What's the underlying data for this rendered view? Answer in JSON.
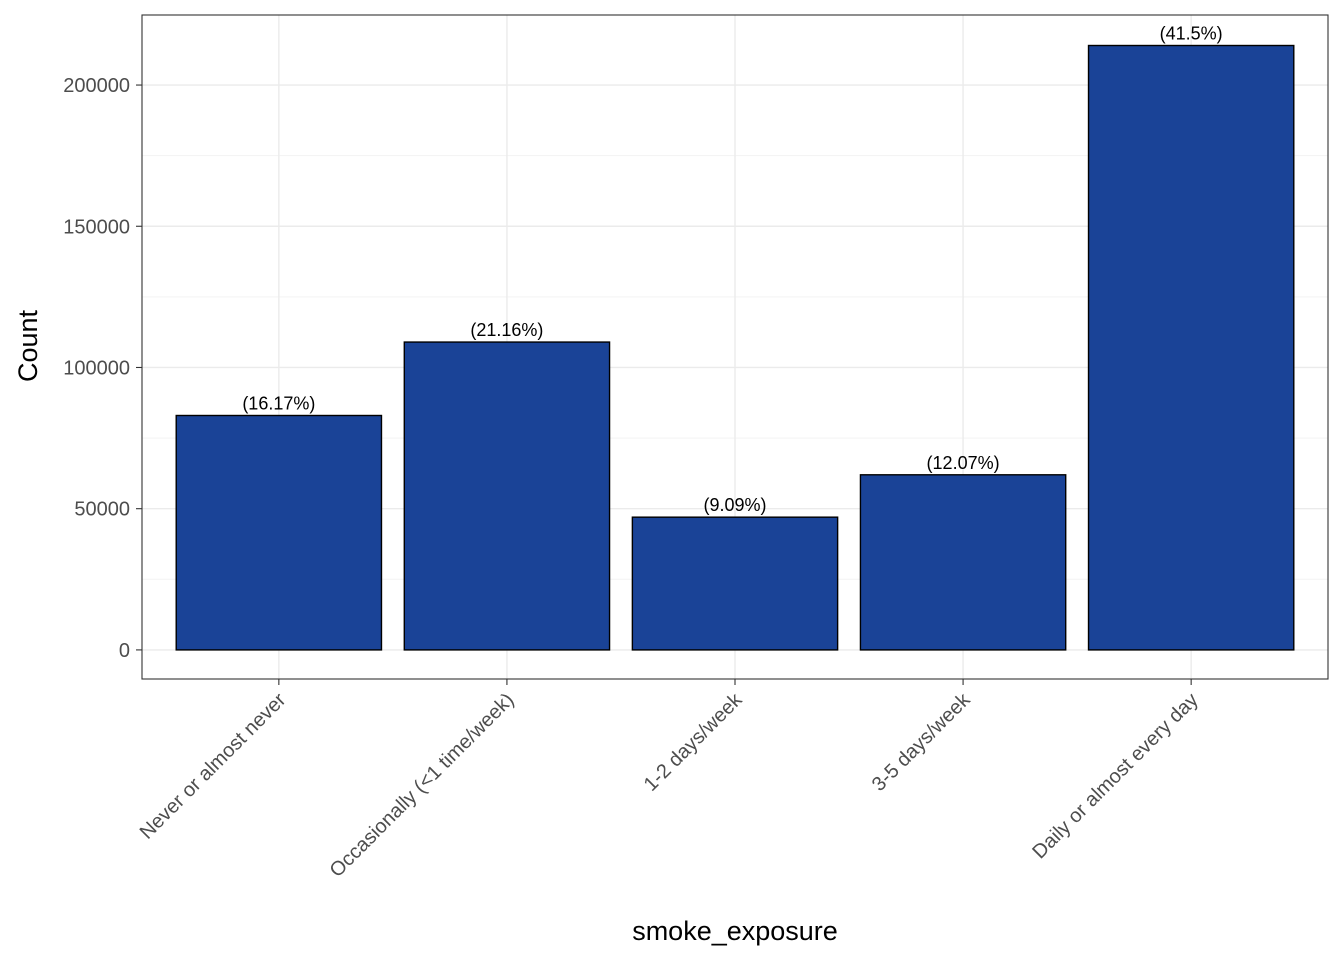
{
  "chart_data": {
    "type": "bar",
    "title": "",
    "xlabel": "smoke_exposure",
    "ylabel": "Count",
    "categories": [
      "Never or almost never",
      "Occasionally (<1 time/week)",
      "1-2 days/week",
      "3-5 days/week",
      "Daily or almost every day"
    ],
    "values": [
      83000,
      109000,
      47000,
      62000,
      214000
    ],
    "data_labels": [
      "(16.17%)",
      "(21.16%)",
      "(9.09%)",
      "(12.07%)",
      "(41.5%)"
    ],
    "ylim": [
      -10300,
      224800
    ],
    "yticks": [
      0,
      50000,
      100000,
      150000,
      200000
    ],
    "ytick_labels": [
      "0",
      "50000",
      "100000",
      "150000",
      "200000"
    ],
    "grid": true,
    "legend": "none",
    "bar_fill": "#1a4397",
    "bar_stroke": "#000000",
    "grid_major_color": "#ebebeb",
    "grid_minor_color": "#f3f3f3",
    "axis_text_color": "#4d4d4d"
  }
}
